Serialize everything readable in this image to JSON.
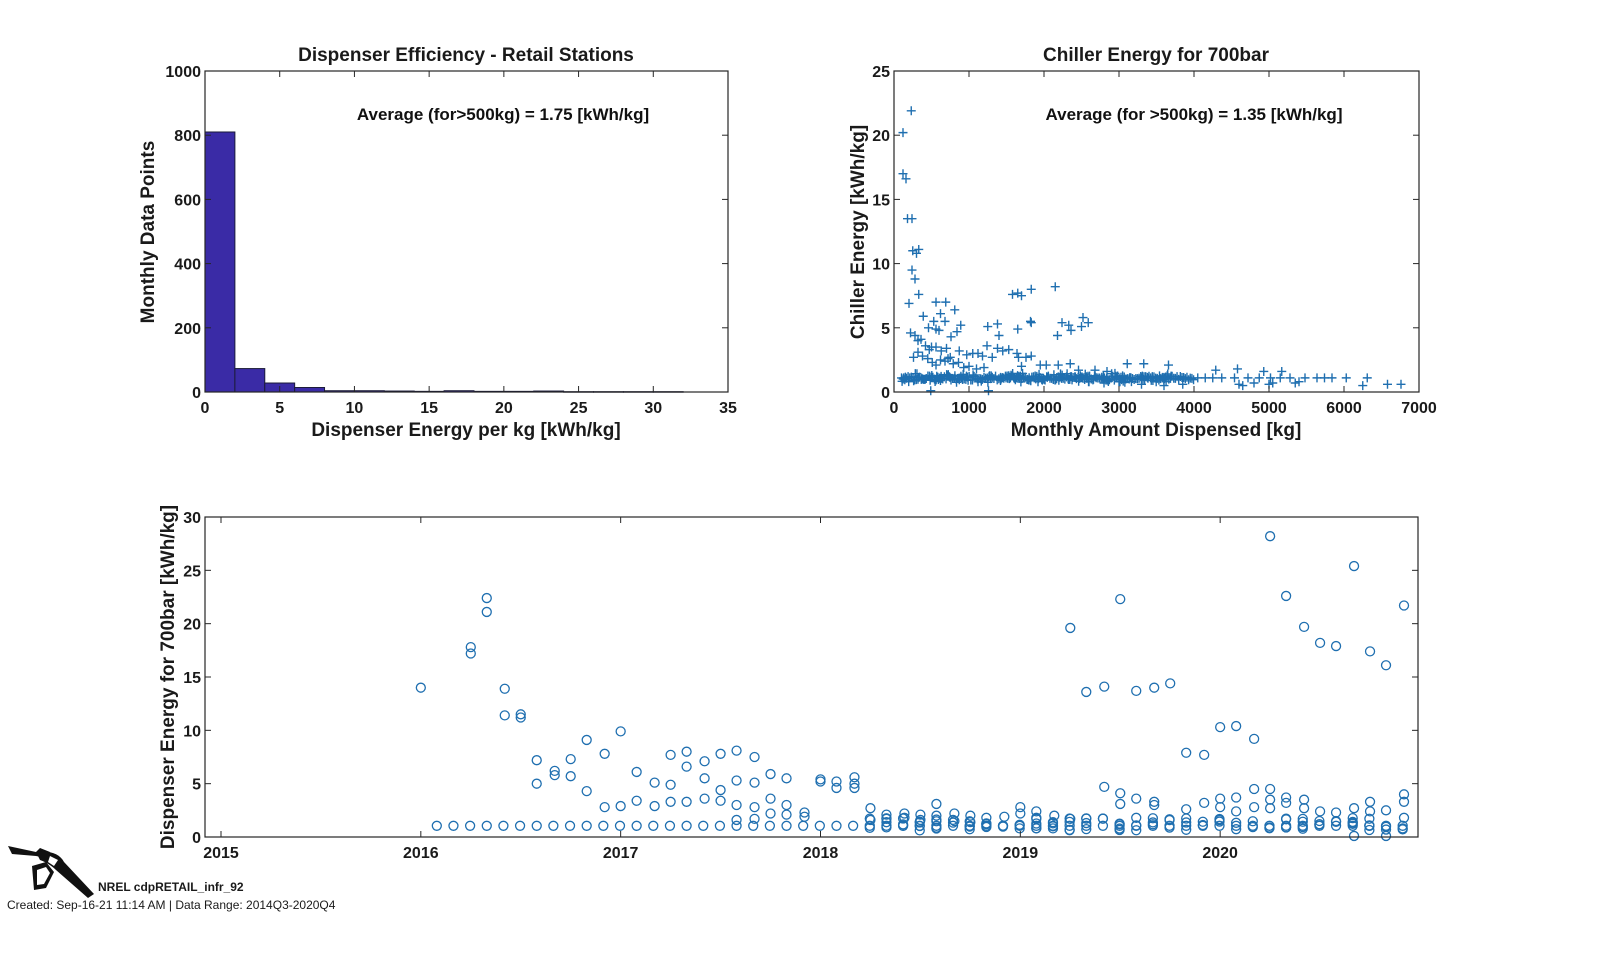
{
  "chart_data": [
    {
      "id": "hist",
      "type": "bar",
      "title": "Dispenser Efficiency - Retail Stations",
      "xlabel": "Dispenser Energy per kg [kWh/kg]",
      "ylabel": "Monthly Data Points",
      "xlim": [
        0,
        35
      ],
      "ylim": [
        0,
        1000
      ],
      "xticks": [
        0,
        5,
        10,
        15,
        20,
        25,
        30,
        35
      ],
      "yticks": [
        0,
        200,
        400,
        600,
        800,
        1000
      ],
      "annotation": "Average (for>500kg) = 1.75 [kWh/kg]",
      "bin_width": 2,
      "bin_starts": [
        0,
        2,
        4,
        6,
        8,
        10,
        12,
        14,
        16,
        18,
        20,
        22,
        24,
        26,
        28,
        30
      ],
      "values": [
        810,
        73,
        28,
        14,
        4,
        4,
        3,
        2,
        4,
        2,
        2,
        3,
        1,
        1,
        1,
        1
      ],
      "color": "#3a2ba6",
      "grid": false
    },
    {
      "id": "chiller",
      "type": "scatter",
      "marker": "+",
      "title": "Chiller Energy for 700bar",
      "xlabel": "Monthly Amount Dispensed [kg]",
      "ylabel": "Chiller Energy [kWh/kg]",
      "xlim": [
        0,
        7000
      ],
      "ylim": [
        0,
        25
      ],
      "xticks": [
        0,
        1000,
        2000,
        3000,
        4000,
        5000,
        6000,
        7000
      ],
      "yticks": [
        0,
        5,
        10,
        15,
        20,
        25
      ],
      "annotation": "Average (for >500kg) = 1.35 [kWh/kg]",
      "color": "#1f6fb0",
      "grid": false,
      "points": [
        [
          230,
          21.9
        ],
        [
          120,
          20.2
        ],
        [
          120,
          17.0
        ],
        [
          160,
          16.6
        ],
        [
          180,
          13.5
        ],
        [
          240,
          13.5
        ],
        [
          250,
          11.0
        ],
        [
          300,
          10.8
        ],
        [
          330,
          11.1
        ],
        [
          240,
          9.5
        ],
        [
          280,
          8.8
        ],
        [
          330,
          7.6
        ],
        [
          200,
          6.9
        ],
        [
          560,
          7.0
        ],
        [
          690,
          7.0
        ],
        [
          620,
          6.1
        ],
        [
          810,
          6.4
        ],
        [
          390,
          5.9
        ],
        [
          460,
          5.0
        ],
        [
          530,
          5.5
        ],
        [
          560,
          4.9
        ],
        [
          600,
          4.8
        ],
        [
          680,
          5.5
        ],
        [
          760,
          4.3
        ],
        [
          840,
          4.7
        ],
        [
          890,
          5.2
        ],
        [
          220,
          4.6
        ],
        [
          280,
          4.4
        ],
        [
          320,
          4.0
        ],
        [
          360,
          4.1
        ],
        [
          420,
          3.6
        ],
        [
          470,
          3.3
        ],
        [
          500,
          3.5
        ],
        [
          560,
          3.5
        ],
        [
          630,
          3.2
        ],
        [
          700,
          3.4
        ],
        [
          750,
          2.7
        ],
        [
          870,
          3.2
        ],
        [
          970,
          2.9
        ],
        [
          1050,
          3.0
        ],
        [
          1120,
          3.0
        ],
        [
          1180,
          2.8
        ],
        [
          260,
          2.7
        ],
        [
          320,
          3.1
        ],
        [
          380,
          2.8
        ],
        [
          450,
          2.6
        ],
        [
          510,
          2.3
        ],
        [
          560,
          2.1
        ],
        [
          620,
          2.5
        ],
        [
          680,
          2.4
        ],
        [
          720,
          2.6
        ],
        [
          790,
          2.2
        ],
        [
          860,
          2.3
        ],
        [
          930,
          1.9
        ],
        [
          1000,
          2.0
        ],
        [
          1100,
          1.8
        ],
        [
          1200,
          1.9
        ],
        [
          1250,
          5.1
        ],
        [
          1380,
          5.3
        ],
        [
          1400,
          4.4
        ],
        [
          1240,
          3.6
        ],
        [
          1310,
          2.7
        ],
        [
          1380,
          3.4
        ],
        [
          1450,
          3.2
        ],
        [
          1530,
          3.3
        ],
        [
          1640,
          3.0
        ],
        [
          1660,
          2.7
        ],
        [
          1700,
          2.0
        ],
        [
          1760,
          2.7
        ],
        [
          1830,
          2.8
        ],
        [
          1580,
          7.6
        ],
        [
          1650,
          7.7
        ],
        [
          1700,
          7.5
        ],
        [
          1830,
          8.0
        ],
        [
          1650,
          4.9
        ],
        [
          1820,
          5.5
        ],
        [
          1830,
          5.4
        ],
        [
          2150,
          8.2
        ],
        [
          2180,
          4.4
        ],
        [
          2240,
          5.4
        ],
        [
          2330,
          5.2
        ],
        [
          2360,
          4.8
        ],
        [
          2500,
          5.1
        ],
        [
          2520,
          5.8
        ],
        [
          2590,
          5.4
        ],
        [
          1950,
          2.1
        ],
        [
          2030,
          2.1
        ],
        [
          2190,
          2.1
        ],
        [
          2350,
          2.2
        ],
        [
          2460,
          1.7
        ],
        [
          2680,
          1.7
        ],
        [
          2840,
          1.6
        ],
        [
          3110,
          2.2
        ],
        [
          3330,
          2.2
        ],
        [
          3660,
          2.1
        ],
        [
          4290,
          1.7
        ],
        [
          4580,
          1.8
        ],
        [
          4930,
          1.6
        ],
        [
          5170,
          1.6
        ],
        [
          490,
          0.1
        ],
        [
          1260,
          0.1
        ],
        [
          620,
          0.9
        ],
        [
          1420,
          0.9
        ],
        [
          1920,
          0.8
        ],
        [
          2600,
          0.8
        ],
        [
          2800,
          0.7
        ],
        [
          3000,
          0.8
        ],
        [
          3300,
          0.6
        ],
        [
          3600,
          0.5
        ],
        [
          3850,
          0.6
        ],
        [
          4600,
          0.6
        ],
        [
          4650,
          0.5
        ],
        [
          4800,
          0.7
        ],
        [
          5000,
          0.6
        ],
        [
          5050,
          0.7
        ],
        [
          5350,
          0.7
        ],
        [
          5400,
          0.8
        ],
        [
          6250,
          0.5
        ],
        [
          6580,
          0.6
        ],
        [
          6760,
          0.6
        ],
        [
          5480,
          1.1
        ],
        [
          5640,
          1.1
        ],
        [
          5740,
          1.1
        ],
        [
          5840,
          1.1
        ],
        [
          6030,
          1.1
        ],
        [
          6310,
          1.1
        ],
        [
          5280,
          1.1
        ],
        [
          5150,
          1.1
        ],
        [
          5020,
          1.1
        ],
        [
          4870,
          1.1
        ],
        [
          4720,
          1.1
        ],
        [
          4540,
          1.1
        ],
        [
          4370,
          1.1
        ],
        [
          4250,
          1.1
        ],
        [
          4150,
          1.1
        ],
        [
          4050,
          1.1
        ]
      ],
      "dense_band": {
        "x_range": [
          100,
          4000
        ],
        "y": 1.1,
        "y_spread": 0.35,
        "note": "dense band of points near 1 kWh/kg"
      }
    },
    {
      "id": "timeline",
      "type": "scatter",
      "marker": "o",
      "title": "",
      "xlabel": "",
      "ylabel": "Dispenser Energy for 700bar [kWh/kg]",
      "xlim": [
        2014.92,
        2020.99
      ],
      "ylim": [
        0,
        30
      ],
      "xticks": [
        2015,
        2016,
        2017,
        2018,
        2019,
        2020
      ],
      "xticklabels": [
        "2015",
        "2016",
        "2017",
        "2018",
        "2019",
        "2020"
      ],
      "yticks": [
        0,
        5,
        10,
        15,
        20,
        25,
        30
      ],
      "color": "#1f6fb0",
      "grid": false,
      "points": [
        [
          2016.0,
          14.0
        ],
        [
          2016.25,
          17.8
        ],
        [
          2016.25,
          17.2
        ],
        [
          2016.33,
          22.4
        ],
        [
          2016.33,
          21.1
        ],
        [
          2016.42,
          13.9
        ],
        [
          2016.42,
          11.4
        ],
        [
          2016.5,
          11.5
        ],
        [
          2016.5,
          11.2
        ],
        [
          2016.58,
          7.2
        ],
        [
          2016.58,
          5.0
        ],
        [
          2016.67,
          6.2
        ],
        [
          2016.67,
          5.8
        ],
        [
          2016.75,
          7.3
        ],
        [
          2016.75,
          5.7
        ],
        [
          2016.83,
          9.1
        ],
        [
          2016.83,
          4.3
        ],
        [
          2016.92,
          7.8
        ],
        [
          2016.92,
          2.8
        ],
        [
          2017.0,
          9.9
        ],
        [
          2017.0,
          2.9
        ],
        [
          2017.08,
          6.1
        ],
        [
          2017.08,
          3.4
        ],
        [
          2017.17,
          5.1
        ],
        [
          2017.17,
          2.9
        ],
        [
          2017.25,
          7.7
        ],
        [
          2017.25,
          4.9
        ],
        [
          2017.25,
          3.3
        ],
        [
          2017.33,
          8.0
        ],
        [
          2017.33,
          6.6
        ],
        [
          2017.33,
          3.3
        ],
        [
          2017.42,
          7.1
        ],
        [
          2017.42,
          5.5
        ],
        [
          2017.42,
          3.6
        ],
        [
          2017.5,
          7.8
        ],
        [
          2017.5,
          4.4
        ],
        [
          2017.5,
          3.4
        ],
        [
          2017.58,
          8.1
        ],
        [
          2017.58,
          5.3
        ],
        [
          2017.58,
          3.0
        ],
        [
          2017.58,
          1.6
        ],
        [
          2017.67,
          7.5
        ],
        [
          2017.67,
          5.1
        ],
        [
          2017.67,
          2.8
        ],
        [
          2017.67,
          1.7
        ],
        [
          2017.75,
          5.9
        ],
        [
          2017.75,
          3.6
        ],
        [
          2017.75,
          2.2
        ],
        [
          2017.83,
          5.5
        ],
        [
          2017.83,
          3.0
        ],
        [
          2017.83,
          2.1
        ],
        [
          2017.92,
          2.3
        ],
        [
          2017.92,
          1.9
        ],
        [
          2018.0,
          5.4
        ],
        [
          2018.0,
          5.2
        ],
        [
          2018.08,
          5.2
        ],
        [
          2018.08,
          4.6
        ],
        [
          2018.17,
          5.6
        ],
        [
          2018.17,
          5.0
        ],
        [
          2018.17,
          4.6
        ],
        [
          2018.25,
          2.7
        ],
        [
          2018.25,
          1.6
        ],
        [
          2018.33,
          2.1
        ],
        [
          2018.33,
          1.7
        ],
        [
          2018.42,
          2.2
        ],
        [
          2018.42,
          1.8
        ],
        [
          2018.5,
          2.1
        ],
        [
          2018.5,
          1.6
        ],
        [
          2018.58,
          3.1
        ],
        [
          2018.58,
          2.0
        ],
        [
          2018.67,
          2.2
        ],
        [
          2018.67,
          1.5
        ],
        [
          2018.75,
          2.0
        ],
        [
          2018.75,
          1.4
        ],
        [
          2018.83,
          1.8
        ],
        [
          2018.92,
          1.9
        ],
        [
          2019.0,
          2.8
        ],
        [
          2019.0,
          2.2
        ],
        [
          2019.08,
          2.4
        ],
        [
          2019.08,
          1.8
        ],
        [
          2019.17,
          2.0
        ],
        [
          2019.25,
          1.7
        ],
        [
          2019.25,
          19.6
        ],
        [
          2019.33,
          13.6
        ],
        [
          2019.42,
          14.1
        ],
        [
          2019.42,
          4.7
        ],
        [
          2019.5,
          22.3
        ],
        [
          2019.5,
          4.1
        ],
        [
          2019.5,
          3.1
        ],
        [
          2019.58,
          13.7
        ],
        [
          2019.58,
          3.6
        ],
        [
          2019.58,
          1.8
        ],
        [
          2019.67,
          14.0
        ],
        [
          2019.67,
          3.3
        ],
        [
          2019.67,
          3.0
        ],
        [
          2019.75,
          14.4
        ],
        [
          2019.83,
          7.9
        ],
        [
          2019.83,
          2.6
        ],
        [
          2019.92,
          7.7
        ],
        [
          2019.92,
          3.2
        ],
        [
          2020.0,
          10.3
        ],
        [
          2020.0,
          3.6
        ],
        [
          2020.0,
          2.8
        ],
        [
          2020.08,
          10.4
        ],
        [
          2020.08,
          3.7
        ],
        [
          2020.08,
          2.4
        ],
        [
          2020.17,
          9.2
        ],
        [
          2020.17,
          4.5
        ],
        [
          2020.17,
          2.8
        ],
        [
          2020.25,
          28.2
        ],
        [
          2020.25,
          4.5
        ],
        [
          2020.25,
          3.5
        ],
        [
          2020.25,
          2.7
        ],
        [
          2020.33,
          22.6
        ],
        [
          2020.33,
          3.7
        ],
        [
          2020.33,
          3.2
        ],
        [
          2020.42,
          19.7
        ],
        [
          2020.42,
          3.5
        ],
        [
          2020.42,
          2.7
        ],
        [
          2020.5,
          18.2
        ],
        [
          2020.5,
          2.4
        ],
        [
          2020.58,
          17.9
        ],
        [
          2020.58,
          2.3
        ],
        [
          2020.67,
          25.4
        ],
        [
          2020.67,
          2.7
        ],
        [
          2020.67,
          0.1
        ],
        [
          2020.75,
          17.4
        ],
        [
          2020.75,
          3.3
        ],
        [
          2020.75,
          2.4
        ],
        [
          2020.83,
          16.1
        ],
        [
          2020.83,
          2.5
        ],
        [
          2020.83,
          0.1
        ],
        [
          2020.92,
          21.7
        ],
        [
          2020.92,
          4.0
        ],
        [
          2020.92,
          3.3
        ],
        [
          2020.92,
          1.8
        ]
      ],
      "baseline": {
        "x_start": 2016.08,
        "x_end": 2020.92,
        "step_months": 1,
        "y": 1.05,
        "note": "one point per month near 1 kWh/kg; extra clustered points 0.6-1.6 from 2018 onward"
      }
    }
  ],
  "footer": {
    "logo_icon": "fuel-nozzle-icon",
    "name": "NREL cdpRETAIL_infr_92",
    "created": "Created: Sep-16-21 11:14 AM | Data Range: 2014Q3-2020Q4"
  }
}
